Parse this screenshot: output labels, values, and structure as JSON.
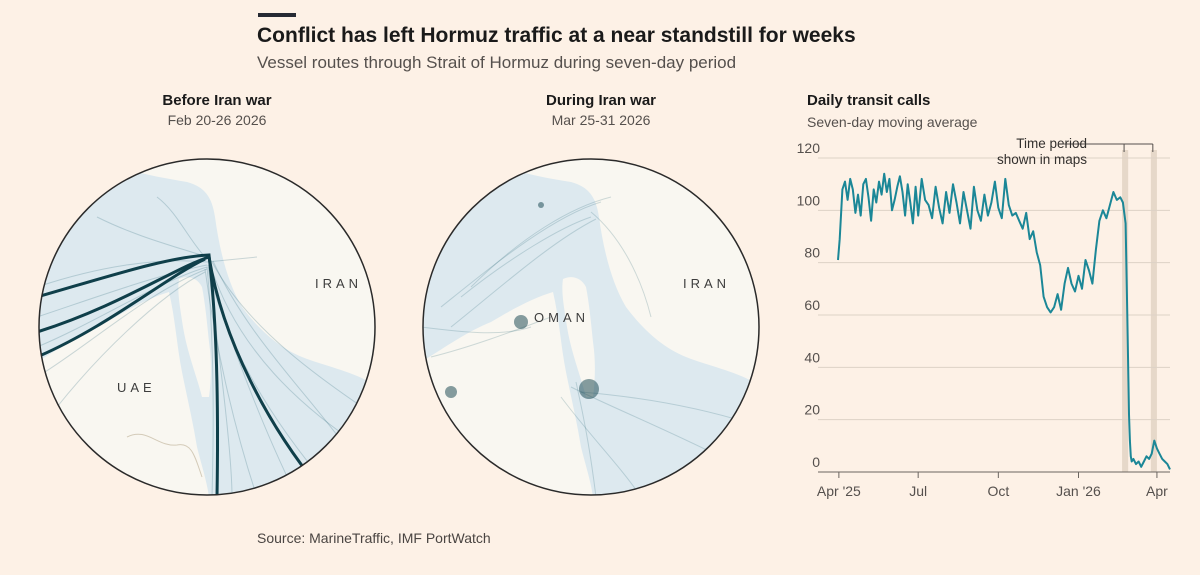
{
  "header": {
    "title": "Conflict has left Hormuz traffic at a near standstill for weeks",
    "subtitle": "Vessel routes through Strait of Hormuz during seven-day period"
  },
  "maps": [
    {
      "heading": "Before Iran war",
      "dates": "Feb 20-26 2026",
      "labels": {
        "iran": "IRAN",
        "uae": "UAE"
      }
    },
    {
      "heading": "During Iran war",
      "dates": "Mar 25-31 2026",
      "labels": {
        "iran": "IRAN",
        "oman": "OMAN"
      }
    }
  ],
  "colors": {
    "background": "#fdf1e6",
    "sea": "#dde9ef",
    "land": "#f9f7f1",
    "route": "#1f6070",
    "series": "#1b8797",
    "highlight_band": "#e6d8c9"
  },
  "chart_data": {
    "type": "line",
    "title": "Daily transit calls",
    "subtitle": "Seven-day moving average",
    "x_ticks": [
      "Apr '25",
      "Jul",
      "Oct",
      "Jan '26",
      "Apr"
    ],
    "y_ticks": [
      0,
      20,
      40,
      60,
      80,
      100,
      120
    ],
    "ylim": [
      0,
      120
    ],
    "grid": true,
    "annotation": "Time period shown in maps",
    "annotation_lines": [
      "Time period",
      "shown in maps"
    ],
    "highlight_periods": [
      {
        "label": "Before Iran war",
        "start": "2026-02-20",
        "end": "2026-02-26"
      },
      {
        "label": "During Iran war",
        "start": "2026-03-25",
        "end": "2026-03-31"
      }
    ],
    "series": [
      {
        "x": [
          "2025-03-31",
          "2025-04-02",
          "2025-04-05",
          "2025-04-08",
          "2025-04-11",
          "2025-04-14",
          "2025-04-17",
          "2025-04-20",
          "2025-04-23",
          "2025-04-26",
          "2025-04-29",
          "2025-05-02",
          "2025-05-05",
          "2025-05-08",
          "2025-05-11",
          "2025-05-14",
          "2025-05-17",
          "2025-05-20",
          "2025-05-23",
          "2025-05-26",
          "2025-05-29",
          "2025-06-01",
          "2025-06-04",
          "2025-06-07",
          "2025-06-10",
          "2025-06-13",
          "2025-06-16",
          "2025-06-19",
          "2025-06-22",
          "2025-06-25",
          "2025-06-28",
          "2025-07-01",
          "2025-07-05",
          "2025-07-09",
          "2025-07-13",
          "2025-07-17",
          "2025-07-21",
          "2025-07-25",
          "2025-07-29",
          "2025-08-02",
          "2025-08-06",
          "2025-08-10",
          "2025-08-14",
          "2025-08-18",
          "2025-08-22",
          "2025-08-26",
          "2025-08-30",
          "2025-09-03",
          "2025-09-07",
          "2025-09-11",
          "2025-09-15",
          "2025-09-19",
          "2025-09-23",
          "2025-09-27",
          "2025-10-01",
          "2025-10-05",
          "2025-10-09",
          "2025-10-13",
          "2025-10-17",
          "2025-10-21",
          "2025-10-25",
          "2025-10-29",
          "2025-11-02",
          "2025-11-06",
          "2025-11-10",
          "2025-11-14",
          "2025-11-18",
          "2025-11-22",
          "2025-11-26",
          "2025-11-30",
          "2025-12-04",
          "2025-12-08",
          "2025-12-12",
          "2025-12-16",
          "2025-12-20",
          "2025-12-24",
          "2025-12-28",
          "2026-01-01",
          "2026-01-05",
          "2026-01-09",
          "2026-01-13",
          "2026-01-17",
          "2026-01-21",
          "2026-01-25",
          "2026-01-29",
          "2026-02-02",
          "2026-02-06",
          "2026-02-10",
          "2026-02-14",
          "2026-02-18",
          "2026-02-21",
          "2026-02-24",
          "2026-02-26",
          "2026-02-28",
          "2026-03-01",
          "2026-03-02",
          "2026-03-03",
          "2026-03-05",
          "2026-03-08",
          "2026-03-11",
          "2026-03-14",
          "2026-03-17",
          "2026-03-20",
          "2026-03-23",
          "2026-03-26",
          "2026-03-29",
          "2026-04-01",
          "2026-04-04",
          "2026-04-07",
          "2026-04-10",
          "2026-04-13",
          "2026-04-16"
        ],
        "values": [
          81,
          89,
          108,
          111,
          104,
          112,
          108,
          99,
          106,
          98,
          110,
          112,
          105,
          96,
          108,
          103,
          111,
          106,
          114,
          107,
          112,
          100,
          104,
          109,
          113,
          107,
          98,
          110,
          103,
          95,
          109,
          98,
          112,
          104,
          102,
          97,
          109,
          101,
          95,
          107,
          99,
          110,
          103,
          95,
          107,
          100,
          93,
          109,
          100,
          96,
          106,
          98,
          103,
          111,
          101,
          97,
          112,
          102,
          98,
          99,
          96,
          93,
          99,
          89,
          92,
          84,
          79,
          67,
          63,
          61,
          63,
          68,
          62,
          72,
          78,
          72,
          69,
          75,
          70,
          81,
          77,
          72,
          85,
          96,
          100,
          97,
          102,
          107,
          104,
          105,
          103,
          95,
          60,
          22,
          12,
          6,
          4,
          5,
          3,
          4,
          2,
          4,
          6,
          5,
          7,
          12,
          9,
          7,
          5,
          4,
          3,
          1
        ]
      }
    ]
  }
}
